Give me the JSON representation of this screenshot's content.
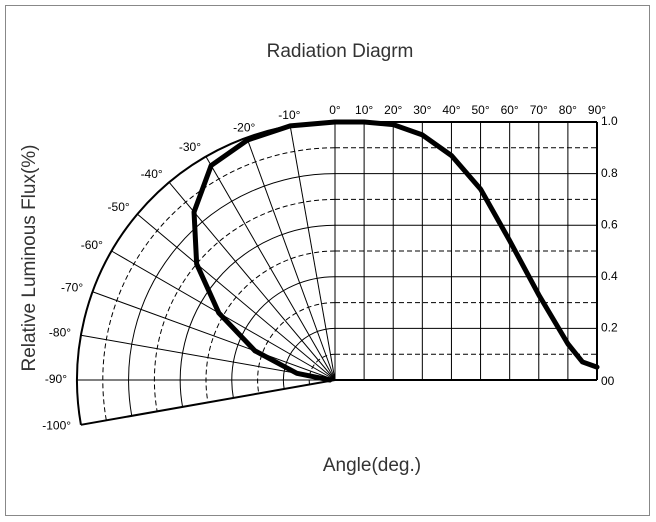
{
  "chart_data": {
    "type": "radiation",
    "title": "Radiation Diagrm",
    "xlabel": "Angle(deg.)",
    "ylabel": "Relative Luminous Flux(%)",
    "x": [
      0,
      10,
      20,
      30,
      40,
      50,
      60,
      70,
      80,
      85,
      90
    ],
    "values": [
      1.0,
      1.0,
      0.99,
      0.95,
      0.87,
      0.74,
      0.54,
      0.33,
      0.14,
      0.07,
      0.05
    ],
    "xlim": [
      0,
      90
    ],
    "ylim": [
      0,
      1
    ],
    "xticks": [
      {
        "value": 0,
        "label": "0°"
      },
      {
        "value": 10,
        "label": "10°"
      },
      {
        "value": 20,
        "label": "20°"
      },
      {
        "value": 30,
        "label": "30°"
      },
      {
        "value": 40,
        "label": "40°"
      },
      {
        "value": 50,
        "label": "50°"
      },
      {
        "value": 60,
        "label": "60°"
      },
      {
        "value": 70,
        "label": "70°"
      },
      {
        "value": 80,
        "label": "80°"
      },
      {
        "value": 90,
        "label": "90°"
      }
    ],
    "yticks": [
      {
        "value": 0,
        "label": "00"
      },
      0.2,
      0.4,
      0.6,
      0.8,
      {
        "value": 1,
        "label": "1.0"
      }
    ],
    "minor_yticks": [
      0.1,
      0.3,
      0.5,
      0.7,
      0.9
    ],
    "polar": {
      "angles": [
        0,
        -10,
        -20,
        -30,
        -40,
        -50,
        -60,
        -70,
        -80,
        -90
      ],
      "values": [
        1.0,
        1.0,
        0.99,
        0.96,
        0.85,
        0.7,
        0.52,
        0.33,
        0.15,
        0.02
      ],
      "angle_ticks": [
        {
          "value": -10,
          "label": "-10°"
        },
        {
          "value": -20,
          "label": "-20°"
        },
        {
          "value": -30,
          "label": "-30°"
        },
        {
          "value": -40,
          "label": "-40°"
        },
        {
          "value": -50,
          "label": "-50°"
        },
        {
          "value": -60,
          "label": "-60°"
        },
        {
          "value": -70,
          "label": "-70°"
        },
        {
          "value": -80,
          "label": "-80°"
        },
        {
          "value": -90,
          "label": "-90°"
        },
        {
          "value": -100,
          "label": "-100°"
        }
      ]
    },
    "color": "#000000"
  }
}
